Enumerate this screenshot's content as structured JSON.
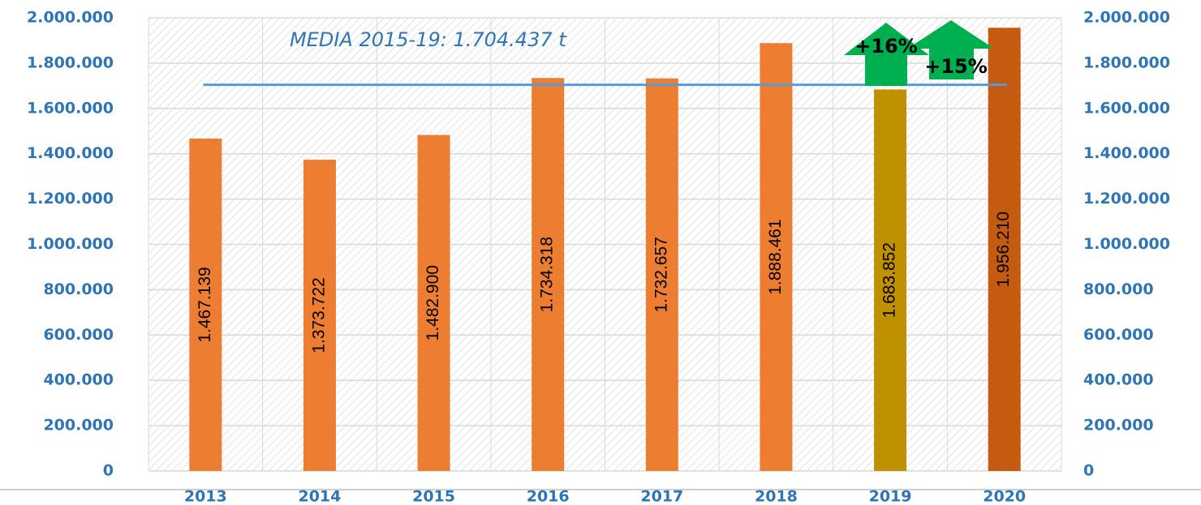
{
  "chart_data": {
    "type": "bar",
    "categories": [
      "2013",
      "2014",
      "2015",
      "2016",
      "2017",
      "2018",
      "2019",
      "2020"
    ],
    "values": [
      1467139,
      1373722,
      1482900,
      1734318,
      1732657,
      1888461,
      1683852,
      1956210
    ],
    "value_labels": [
      "1.467.139",
      "1.373.722",
      "1.482.900",
      "1.734.318",
      "1.732.657",
      "1.888.461",
      "1.683.852",
      "1.956.210"
    ],
    "colors": [
      "#ed7d31",
      "#ed7d31",
      "#ed7d31",
      "#ed7d31",
      "#ed7d31",
      "#ed7d31",
      "#bf9000",
      "#c55a11"
    ],
    "ylim": [
      0,
      2000000
    ],
    "yticks": [
      0,
      {
        "value": 200000,
        "label": "200.000"
      },
      {
        "value": 400000,
        "label": "400.000"
      },
      {
        "value": 600000,
        "label": "600.000"
      },
      {
        "value": 800000,
        "label": "800.000"
      },
      {
        "value": 1000000,
        "label": "1.000.000"
      },
      {
        "value": 1200000,
        "label": "1.200.000"
      },
      {
        "value": 1400000,
        "label": "1.400.000"
      },
      {
        "value": 1600000,
        "label": "1.600.000"
      },
      {
        "value": 1800000,
        "label": "1.800.000"
      },
      {
        "value": 2000000,
        "label": "2.000.000"
      }
    ],
    "y2lim": [
      0,
      2000000
    ],
    "y2ticks": [
      0,
      {
        "value": 200000,
        "label": "200.000"
      },
      {
        "value": 400000,
        "label": "400.000"
      },
      {
        "value": 600000,
        "label": "600.000"
      },
      {
        "value": 800000,
        "label": "800.000"
      },
      {
        "value": 1000000,
        "label": "1.000.000"
      },
      {
        "value": 1200000,
        "label": "1.200.000"
      },
      {
        "value": 1400000,
        "label": "1.400.000"
      },
      {
        "value": 1600000,
        "label": "1.600.000"
      },
      {
        "value": 1800000,
        "label": "1.800.000"
      },
      {
        "value": 2000000,
        "label": "2.000.000"
      }
    ],
    "reference_line": {
      "value": 1704437,
      "label": "MEDIA 2015-19: 1.704.437 t",
      "color": "#5b9bd5"
    },
    "annotations": [
      "+16%",
      "+15%"
    ],
    "grid": true
  }
}
